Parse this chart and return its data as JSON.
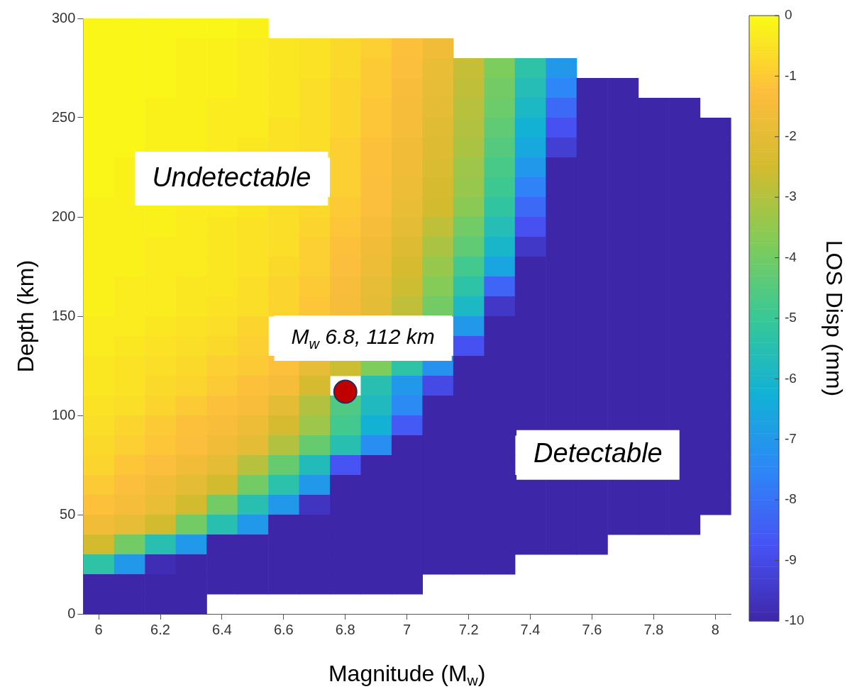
{
  "chart_data": {
    "type": "heatmap",
    "xlabel": "Magnitude (M$_{w}$)",
    "ylabel": "Depth (km)",
    "clabel": "LOS Disp (mm)",
    "categories": [
      "6",
      null,
      "6.2",
      null,
      "6.4",
      null,
      "6.6",
      null,
      "6.8",
      null,
      "7",
      null,
      "7.2",
      null,
      "7.4",
      null,
      "7.6",
      null,
      "7.8",
      null,
      "8"
    ],
    "ylim": [
      0,
      300
    ],
    "yticks": [
      0,
      50,
      100,
      150,
      200,
      250,
      300
    ],
    "clim": [
      -10,
      0
    ],
    "cticks": [
      -10,
      -9,
      -8,
      -7,
      -6,
      -5,
      -4,
      -3,
      -2,
      -1,
      0
    ],
    "cells": [
      [
        -0.1,
        -0.1,
        -0.1,
        -0.1,
        -0.1,
        -0.2,
        null,
        null,
        null,
        null,
        null,
        null,
        null,
        null,
        null,
        null,
        null,
        null,
        null,
        null,
        null
      ],
      [
        -0.1,
        -0.1,
        -0.1,
        -0.2,
        -0.2,
        -0.3,
        -0.4,
        -0.5,
        -0.7,
        -0.9,
        -1.2,
        -1.6,
        null,
        null,
        null,
        null,
        null,
        null,
        null,
        null,
        null
      ],
      [
        -0.1,
        -0.1,
        -0.1,
        -0.2,
        -0.2,
        -0.3,
        -0.4,
        -0.5,
        -0.7,
        -1.0,
        -1.3,
        -1.8,
        -2.7,
        -3.8,
        -5.3,
        -7.0,
        null,
        null,
        null,
        null,
        null
      ],
      [
        -0.1,
        -0.1,
        -0.1,
        -0.2,
        -0.2,
        -0.3,
        -0.4,
        -0.6,
        -0.8,
        -1.0,
        -1.4,
        -1.9,
        -2.8,
        -4.0,
        -5.6,
        -7.5,
        -10,
        -10,
        null,
        null,
        null
      ],
      [
        -0.1,
        -0.1,
        -0.2,
        -0.2,
        -0.3,
        -0.3,
        -0.4,
        -0.6,
        -0.8,
        -1.1,
        -1.5,
        -2.0,
        -2.9,
        -4.1,
        -5.9,
        -8.2,
        -10,
        -10,
        -10,
        -10,
        null
      ],
      [
        -0.1,
        -0.1,
        -0.2,
        -0.2,
        -0.3,
        -0.3,
        -0.5,
        -0.6,
        -0.8,
        -1.1,
        -1.5,
        -2.1,
        -3.0,
        -4.3,
        -6.2,
        -8.8,
        -10,
        -10,
        -10,
        -10,
        -10
      ],
      [
        -0.1,
        -0.1,
        -0.2,
        -0.2,
        -0.3,
        -0.4,
        -0.5,
        -0.6,
        -0.9,
        -1.2,
        -1.6,
        -2.2,
        -3.1,
        -4.5,
        -6.5,
        -9.3,
        -10,
        -10,
        -10,
        -10,
        -10
      ],
      [
        -0.1,
        -0.2,
        null,
        null,
        null,
        null,
        null,
        null,
        -0.9,
        -1.2,
        -1.6,
        -2.3,
        -3.3,
        -4.7,
        -7.0,
        -10,
        -10,
        -10,
        -10,
        -10,
        -10
      ],
      [
        -0.1,
        -0.2,
        null,
        null,
        null,
        null,
        null,
        null,
        -0.9,
        -1.3,
        -1.7,
        -2.4,
        -3.4,
        -4.9,
        -7.6,
        -10,
        -10,
        -10,
        -10,
        -10,
        -10
      ],
      [
        -0.2,
        -0.2,
        -0.2,
        -0.3,
        -0.3,
        -0.4,
        -0.6,
        -0.7,
        -1.0,
        -1.3,
        -1.8,
        -2.5,
        -3.6,
        -5.2,
        -8.2,
        -10,
        -10,
        -10,
        -10,
        -10,
        -10
      ],
      [
        -0.2,
        -0.2,
        -0.2,
        -0.3,
        -0.4,
        -0.5,
        -0.6,
        -0.8,
        -1.1,
        -1.5,
        -2.0,
        -2.8,
        -4.0,
        -5.6,
        -8.8,
        -10,
        -10,
        -10,
        -10,
        -10,
        -10
      ],
      [
        -0.2,
        -0.2,
        -0.3,
        -0.3,
        -0.4,
        -0.5,
        -0.6,
        -0.9,
        -1.2,
        -1.6,
        -2.2,
        -3.1,
        -4.3,
        -6.0,
        -9.5,
        -10,
        -10,
        -10,
        -10,
        -10,
        -10
      ],
      [
        -0.2,
        -0.2,
        -0.3,
        -0.3,
        -0.4,
        -0.5,
        -0.7,
        -0.9,
        -1.3,
        -1.7,
        -2.4,
        -3.4,
        -4.8,
        -6.6,
        -10,
        -10,
        -10,
        -10,
        -10,
        -10,
        -10
      ],
      [
        -0.2,
        -0.3,
        -0.3,
        -0.4,
        -0.4,
        -0.6,
        -0.8,
        -1.0,
        -1.4,
        -1.9,
        -2.6,
        -3.7,
        -5.3,
        -8.3,
        -10,
        -10,
        -10,
        -10,
        -10,
        -10,
        -10
      ],
      [
        -0.2,
        -0.3,
        -0.3,
        -0.4,
        -0.5,
        -0.6,
        -0.8,
        -1.1,
        -1.5,
        -2.0,
        -2.8,
        -4.0,
        -5.9,
        -9.5,
        -10,
        -10,
        -10,
        -10,
        -10,
        -10,
        -10
      ],
      [
        -0.3,
        -0.3,
        -0.4,
        -0.5,
        -0.6,
        -0.8,
        null,
        null,
        null,
        null,
        null,
        null,
        -7.0,
        -10,
        -10,
        -10,
        -10,
        -10,
        -10,
        -10,
        -10
      ],
      [
        -0.3,
        -0.4,
        -0.5,
        -0.6,
        -0.7,
        -0.9,
        null,
        null,
        null,
        null,
        null,
        null,
        -8.8,
        -10,
        -10,
        -10,
        -10,
        -10,
        -10,
        -10,
        -10
      ],
      [
        -0.4,
        -0.5,
        -0.6,
        -0.7,
        -0.9,
        -1.0,
        -1.2,
        -1.9,
        -2.6,
        -3.8,
        -5.3,
        -7.2,
        -10,
        -10,
        -10,
        -10,
        -10,
        -10,
        -10,
        -10,
        -10
      ],
      [
        -0.4,
        -0.5,
        -0.7,
        -0.8,
        -1.0,
        -1.2,
        -1.5,
        -2.4,
        null,
        -5.5,
        -7.0,
        -9.0,
        -10,
        -10,
        -10,
        -10,
        -10,
        -10,
        -10,
        -10,
        -10
      ],
      [
        -0.5,
        -0.6,
        -0.8,
        -1.0,
        -1.2,
        -1.4,
        -2.0,
        -3.0,
        -4.6,
        -5.8,
        -7.4,
        -10,
        -10,
        -10,
        -10,
        -10,
        -10,
        -10,
        -10,
        -10,
        -10
      ],
      [
        -0.6,
        -0.8,
        -1.0,
        -1.2,
        -1.4,
        -1.7,
        -2.4,
        -3.3,
        -4.8,
        -6.2,
        -8.6,
        -10,
        -10,
        -10,
        -10,
        -10,
        -10,
        -10,
        -10,
        -10,
        -10
      ],
      [
        -0.7,
        -0.9,
        -1.1,
        -1.3,
        -1.6,
        -2.0,
        -3.0,
        -4.2,
        -5.5,
        -7.3,
        -10,
        -10,
        -10,
        -10,
        null,
        null,
        null,
        null,
        null,
        -10,
        -10
      ],
      [
        -0.8,
        -1.1,
        -1.3,
        -1.6,
        -2.0,
        -2.9,
        -4.2,
        -5.7,
        -8.7,
        -10,
        -10,
        -10,
        -10,
        -10,
        null,
        null,
        null,
        null,
        null,
        -10,
        -10
      ],
      [
        -1.0,
        -1.3,
        -1.6,
        -2.0,
        -2.5,
        -4.0,
        -5.4,
        -7.0,
        -10,
        -10,
        -10,
        -10,
        -10,
        -10,
        -10,
        -10,
        -10,
        -10,
        -10,
        -10,
        -10
      ],
      [
        -1.2,
        -1.5,
        -1.8,
        -2.5,
        -4.0,
        -5.5,
        -7.0,
        -9.6,
        -10,
        -10,
        -10,
        -10,
        -10,
        -10,
        -10,
        -10,
        -10,
        -10,
        -10,
        -10,
        -10
      ],
      [
        -1.6,
        -1.9,
        -2.5,
        -4.0,
        -5.5,
        -7.0,
        -10,
        -10,
        -10,
        -10,
        -10,
        -10,
        -10,
        -10,
        -10,
        -10,
        -10,
        -10,
        -10,
        -10,
        null
      ],
      [
        -2.5,
        -4.0,
        -5.5,
        -7.0,
        -10,
        -10,
        -10,
        -10,
        -10,
        -10,
        -10,
        -10,
        -10,
        -10,
        -10,
        -10,
        -10,
        null,
        null,
        null,
        null
      ],
      [
        -5.3,
        -7.0,
        -9.8,
        -10,
        -10,
        -10,
        -10,
        -10,
        -10,
        -10,
        -10,
        -10,
        -10,
        -10,
        null,
        null,
        null,
        null,
        null,
        null,
        null
      ],
      [
        -10,
        -10,
        -10,
        -10,
        -10,
        -10,
        -10,
        -10,
        -10,
        -10,
        -10,
        null,
        null,
        null,
        null,
        null,
        null,
        null,
        null,
        null,
        null
      ],
      [
        -10,
        -10,
        -10,
        -10,
        null,
        null,
        null,
        null,
        null,
        null,
        null,
        null,
        null,
        null,
        null,
        null,
        null,
        null,
        null,
        null,
        null
      ]
    ],
    "series": [
      {
        "type": "scatter",
        "x": [
          "6.8"
        ],
        "values": [
          112
        ],
        "color": "#c00000"
      }
    ],
    "annotations": [
      "Undetectable",
      "Detectable",
      "M$_{w}$ 6.8, 112 km"
    ]
  }
}
